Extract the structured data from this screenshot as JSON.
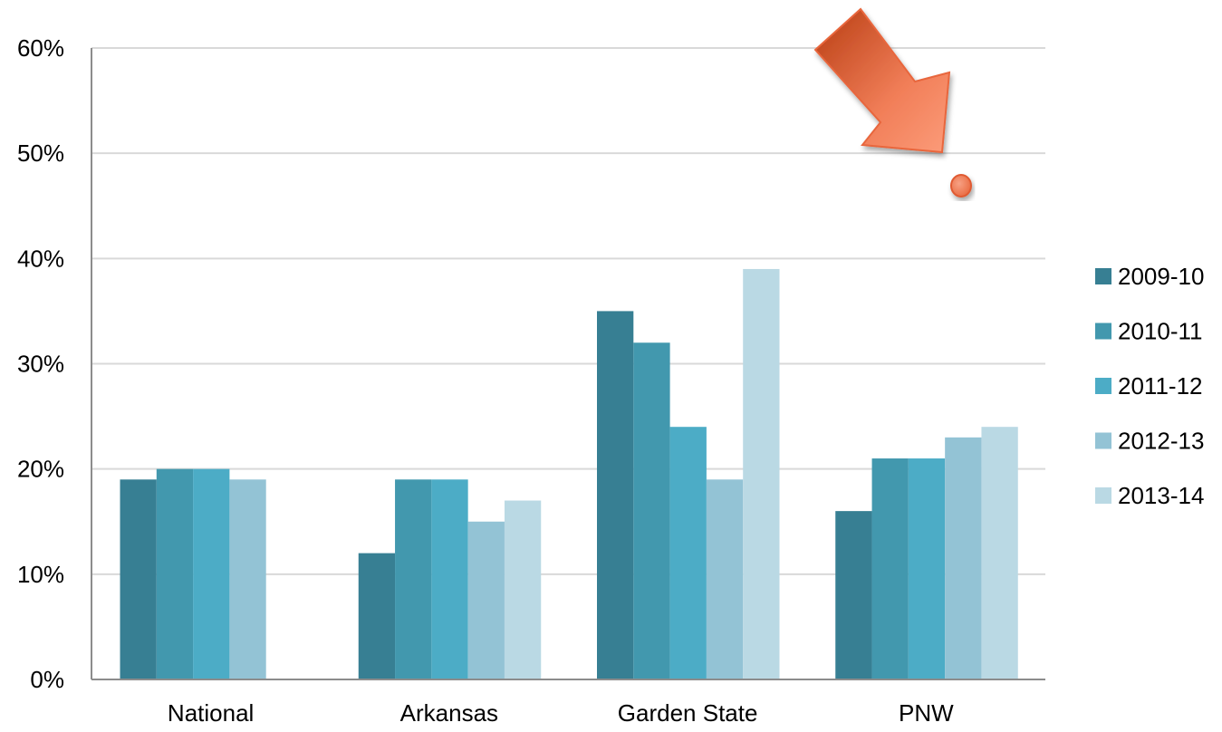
{
  "chart_data": {
    "type": "bar",
    "categories": [
      "National",
      "Arkansas",
      "Garden State",
      "PNW"
    ],
    "series": [
      {
        "name": "2009-10",
        "color": "#377f93",
        "values": [
          19,
          12,
          35,
          16
        ]
      },
      {
        "name": "2010-11",
        "color": "#4298ae",
        "values": [
          20,
          19,
          32,
          21
        ]
      },
      {
        "name": "2011-12",
        "color": "#4cacc6",
        "values": [
          20,
          19,
          24,
          21
        ]
      },
      {
        "name": "2012-13",
        "color": "#93c3d5",
        "values": [
          19,
          15,
          19,
          23
        ]
      },
      {
        "name": "2013-14",
        "color": "#bad9e4",
        "values": [
          null,
          17,
          39,
          24
        ]
      }
    ],
    "yticks": [
      "0%",
      "10%",
      "20%",
      "30%",
      "40%",
      "50%",
      "60%"
    ],
    "ylim": [
      0,
      60
    ],
    "grid": true,
    "legend_position": "right",
    "title": "",
    "xlabel": "",
    "ylabel": "",
    "annotation": {
      "type": "arrow-with-dot",
      "color": "#f4845f",
      "dark_color": "#b83d12",
      "points_to": "PNW"
    }
  }
}
